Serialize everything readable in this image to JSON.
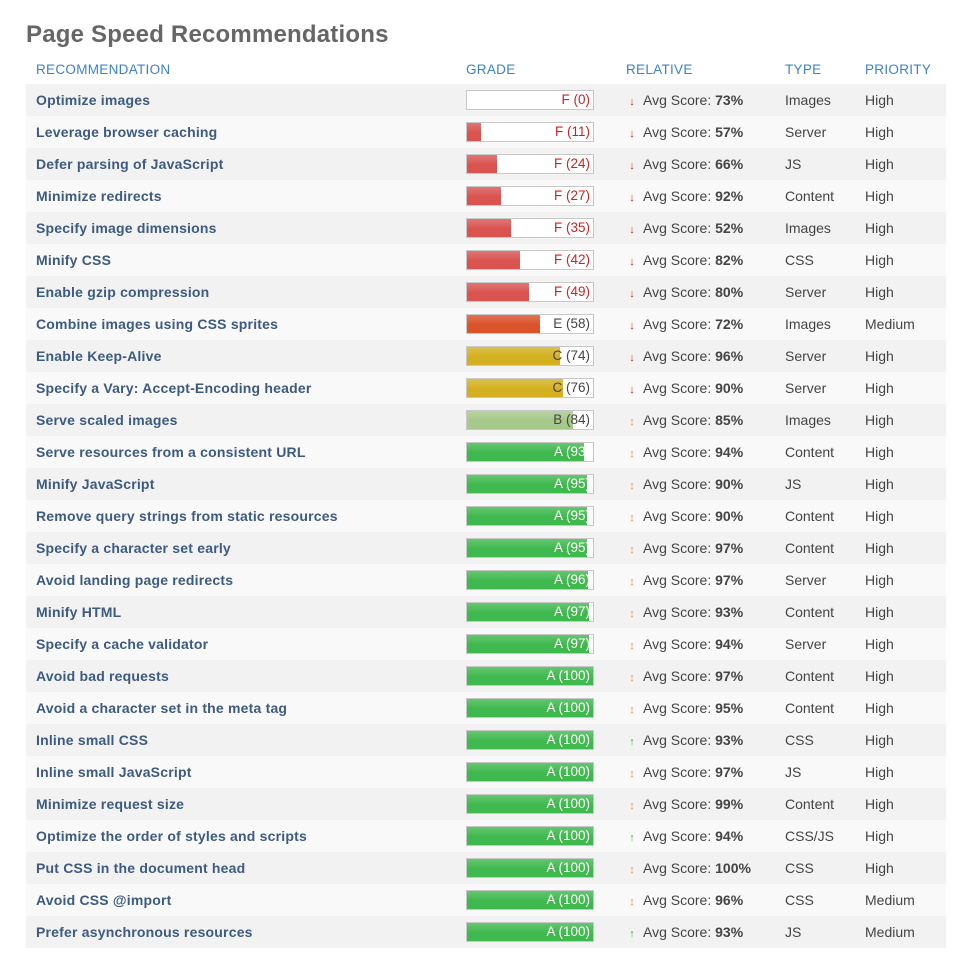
{
  "title": "Page Speed Recommendations",
  "columns": {
    "recommendation": "RECOMMENDATION",
    "grade": "GRADE",
    "relative": "RELATIVE",
    "type": "TYPE",
    "priority": "PRIORITY"
  },
  "avg_label": "Avg Score:",
  "grade_colors": {
    "F": "#d9534f",
    "E": "#d9532b",
    "C": "#d4b020",
    "B": "#a6c88a",
    "A": "#3fb84d"
  },
  "trend_icons": {
    "down": {
      "glyph": "↓",
      "color": "#cc2222",
      "icon": "arrow-down-icon"
    },
    "neutral": {
      "glyph": "↕",
      "color": "#f0a030",
      "icon": "arrow-up-down-icon"
    },
    "up": {
      "glyph": "↑",
      "color": "#4caf50",
      "icon": "arrow-up-icon"
    }
  },
  "rows": [
    {
      "name": "Optimize images",
      "letter": "F",
      "grade_label": "F (0)",
      "score": 0,
      "trend": "down",
      "avg": "73%",
      "type": "Images",
      "priority": "High"
    },
    {
      "name": "Leverage browser caching",
      "letter": "F",
      "grade_label": "F (11)",
      "score": 11,
      "trend": "down",
      "avg": "57%",
      "type": "Server",
      "priority": "High"
    },
    {
      "name": "Defer parsing of JavaScript",
      "letter": "F",
      "grade_label": "F (24)",
      "score": 24,
      "trend": "down",
      "avg": "66%",
      "type": "JS",
      "priority": "High"
    },
    {
      "name": "Minimize redirects",
      "letter": "F",
      "grade_label": "F (27)",
      "score": 27,
      "trend": "down",
      "avg": "92%",
      "type": "Content",
      "priority": "High"
    },
    {
      "name": "Specify image dimensions",
      "letter": "F",
      "grade_label": "F (35)",
      "score": 35,
      "trend": "down",
      "avg": "52%",
      "type": "Images",
      "priority": "High"
    },
    {
      "name": "Minify CSS",
      "letter": "F",
      "grade_label": "F (42)",
      "score": 42,
      "trend": "down",
      "avg": "82%",
      "type": "CSS",
      "priority": "High"
    },
    {
      "name": "Enable gzip compression",
      "letter": "F",
      "grade_label": "F (49)",
      "score": 49,
      "trend": "down",
      "avg": "80%",
      "type": "Server",
      "priority": "High"
    },
    {
      "name": "Combine images using CSS sprites",
      "letter": "E",
      "grade_label": "E (58)",
      "score": 58,
      "trend": "down",
      "avg": "72%",
      "type": "Images",
      "priority": "Medium"
    },
    {
      "name": "Enable Keep-Alive",
      "letter": "C",
      "grade_label": "C (74)",
      "score": 74,
      "trend": "down",
      "avg": "96%",
      "type": "Server",
      "priority": "High"
    },
    {
      "name": "Specify a Vary: Accept-Encoding header",
      "letter": "C",
      "grade_label": "C (76)",
      "score": 76,
      "trend": "down",
      "avg": "90%",
      "type": "Server",
      "priority": "High"
    },
    {
      "name": "Serve scaled images",
      "letter": "B",
      "grade_label": "B (84)",
      "score": 84,
      "trend": "neutral",
      "avg": "85%",
      "type": "Images",
      "priority": "High"
    },
    {
      "name": "Serve resources from a consistent URL",
      "letter": "A",
      "grade_label": "A (93)",
      "score": 93,
      "trend": "neutral",
      "avg": "94%",
      "type": "Content",
      "priority": "High"
    },
    {
      "name": "Minify JavaScript",
      "letter": "A",
      "grade_label": "A (95)",
      "score": 95,
      "trend": "neutral",
      "avg": "90%",
      "type": "JS",
      "priority": "High"
    },
    {
      "name": "Remove query strings from static resources",
      "letter": "A",
      "grade_label": "A (95)",
      "score": 95,
      "trend": "neutral",
      "avg": "90%",
      "type": "Content",
      "priority": "High"
    },
    {
      "name": "Specify a character set early",
      "letter": "A",
      "grade_label": "A (95)",
      "score": 95,
      "trend": "neutral",
      "avg": "97%",
      "type": "Content",
      "priority": "High"
    },
    {
      "name": "Avoid landing page redirects",
      "letter": "A",
      "grade_label": "A (96)",
      "score": 96,
      "trend": "neutral",
      "avg": "97%",
      "type": "Server",
      "priority": "High"
    },
    {
      "name": "Minify HTML",
      "letter": "A",
      "grade_label": "A (97)",
      "score": 97,
      "trend": "neutral",
      "avg": "93%",
      "type": "Content",
      "priority": "High"
    },
    {
      "name": "Specify a cache validator",
      "letter": "A",
      "grade_label": "A (97)",
      "score": 97,
      "trend": "neutral",
      "avg": "94%",
      "type": "Server",
      "priority": "High"
    },
    {
      "name": "Avoid bad requests",
      "letter": "A",
      "grade_label": "A (100)",
      "score": 100,
      "trend": "neutral",
      "avg": "97%",
      "type": "Content",
      "priority": "High"
    },
    {
      "name": "Avoid a character set in the meta tag",
      "letter": "A",
      "grade_label": "A (100)",
      "score": 100,
      "trend": "neutral",
      "avg": "95%",
      "type": "Content",
      "priority": "High"
    },
    {
      "name": "Inline small CSS",
      "letter": "A",
      "grade_label": "A (100)",
      "score": 100,
      "trend": "up",
      "avg": "93%",
      "type": "CSS",
      "priority": "High"
    },
    {
      "name": "Inline small JavaScript",
      "letter": "A",
      "grade_label": "A (100)",
      "score": 100,
      "trend": "neutral",
      "avg": "97%",
      "type": "JS",
      "priority": "High"
    },
    {
      "name": "Minimize request size",
      "letter": "A",
      "grade_label": "A (100)",
      "score": 100,
      "trend": "neutral",
      "avg": "99%",
      "type": "Content",
      "priority": "High"
    },
    {
      "name": "Optimize the order of styles and scripts",
      "letter": "A",
      "grade_label": "A (100)",
      "score": 100,
      "trend": "up",
      "avg": "94%",
      "type": "CSS/JS",
      "priority": "High"
    },
    {
      "name": "Put CSS in the document head",
      "letter": "A",
      "grade_label": "A (100)",
      "score": 100,
      "trend": "neutral",
      "avg": "100%",
      "type": "CSS",
      "priority": "High"
    },
    {
      "name": "Avoid CSS @import",
      "letter": "A",
      "grade_label": "A (100)",
      "score": 100,
      "trend": "neutral",
      "avg": "96%",
      "type": "CSS",
      "priority": "Medium"
    },
    {
      "name": "Prefer asynchronous resources",
      "letter": "A",
      "grade_label": "A (100)",
      "score": 100,
      "trend": "up",
      "avg": "93%",
      "type": "JS",
      "priority": "Medium"
    }
  ]
}
